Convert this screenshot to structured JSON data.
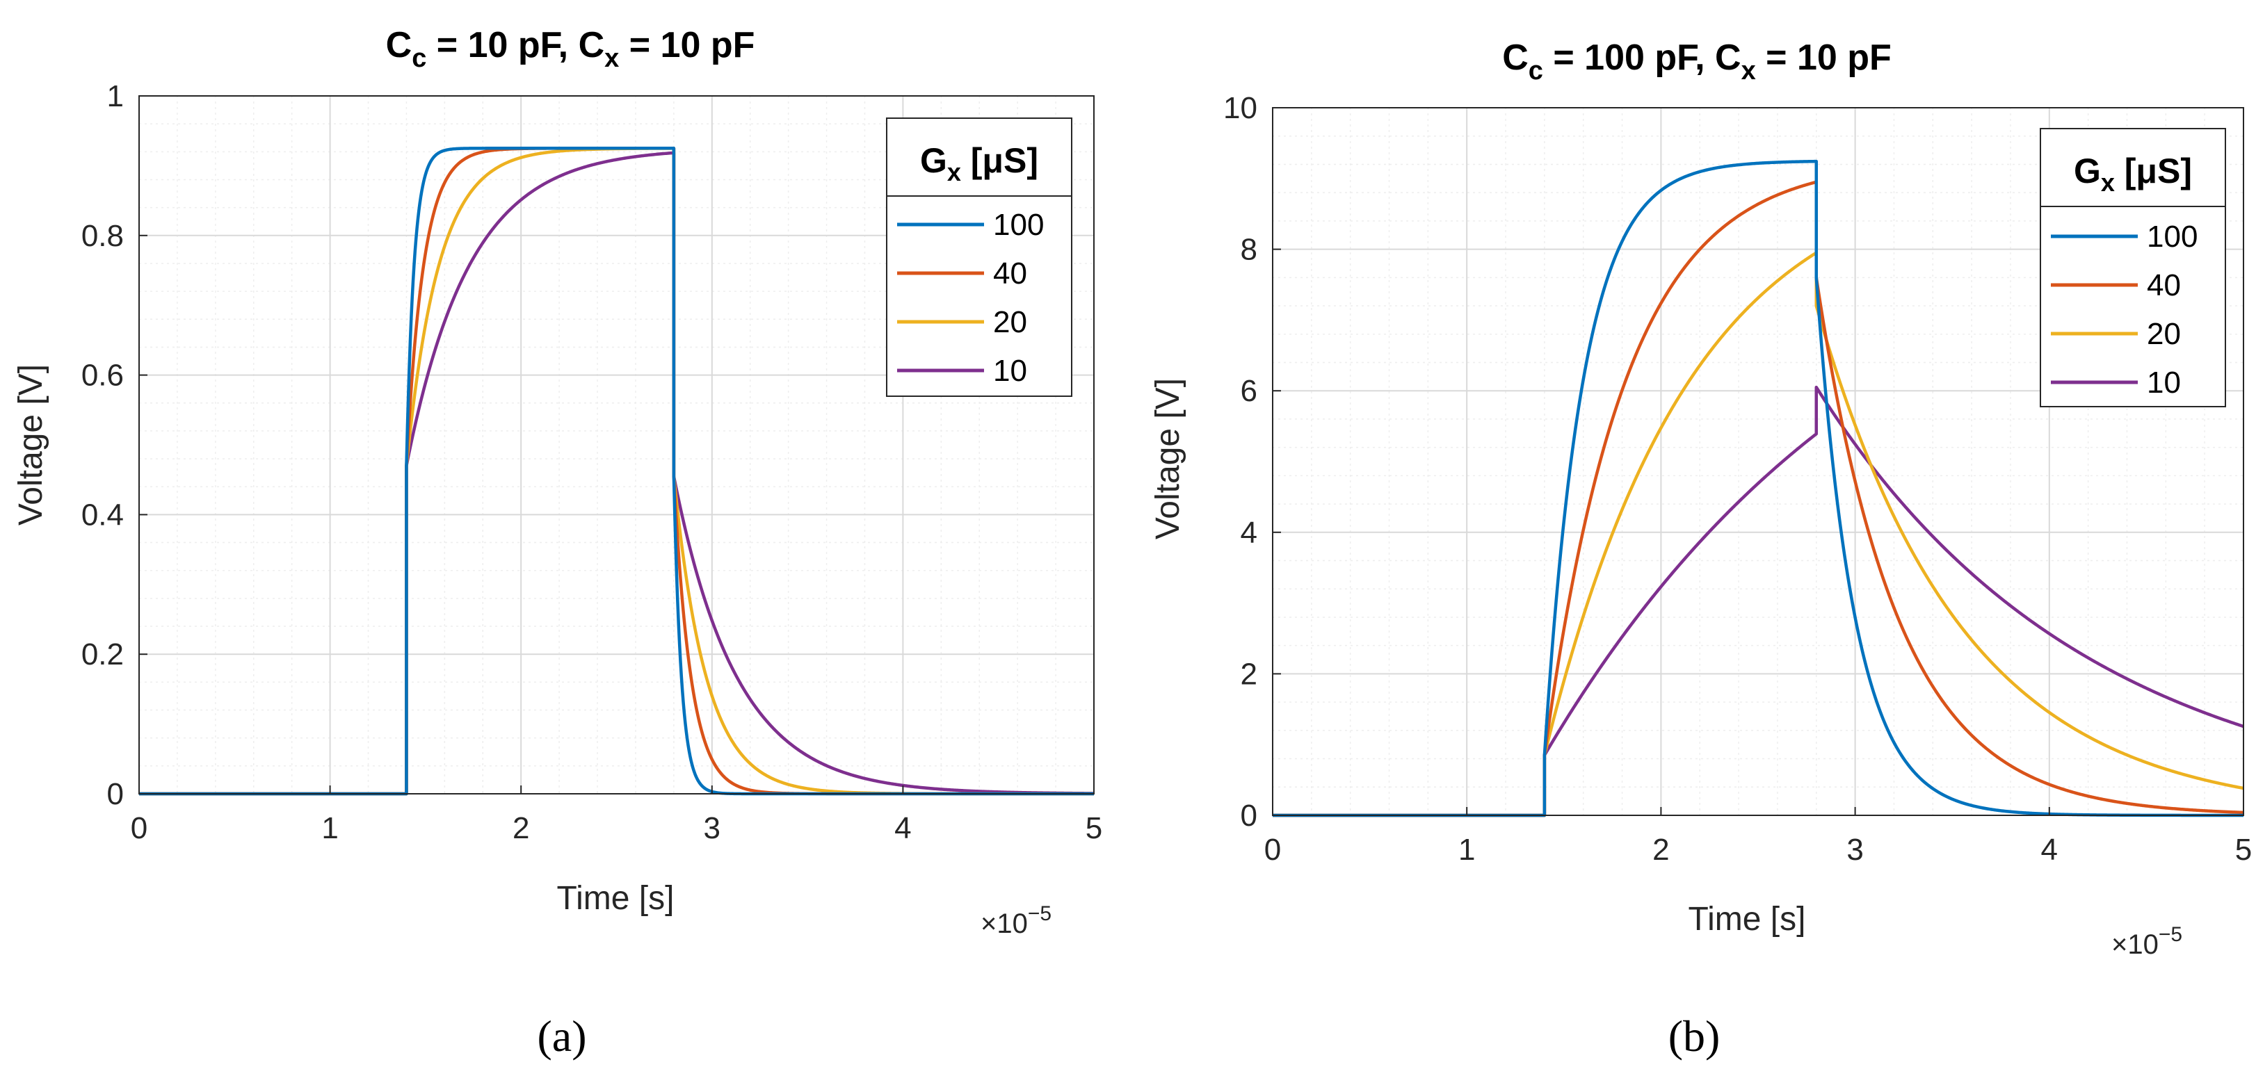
{
  "colors": {
    "series": [
      "#0072BD",
      "#D95319",
      "#EDB120",
      "#7E2F8E"
    ],
    "grid_major": "#d9d9d9",
    "grid_minor": "#eeeeee",
    "axis": "#262626"
  },
  "chart_data": [
    {
      "type": "line",
      "panel": "a",
      "caption": "(a)",
      "title_prefix": "C",
      "title_sub1": "c",
      "title_mid": " = 10 pF, C",
      "title_sub2": "x",
      "title_suffix": " = 10 pF",
      "xlabel": "Time [s]",
      "ylabel": "Voltage [V]",
      "xlim": [
        0,
        5
      ],
      "ylim": [
        0,
        1
      ],
      "xticks": [
        "0",
        "1",
        "2",
        "3",
        "4",
        "5"
      ],
      "yticks": [
        "0",
        "0.2",
        "0.4",
        "0.6",
        "0.8",
        "1"
      ],
      "x_exponent_base": "×10",
      "x_exponent_power": "−5",
      "legend_title_main": "G",
      "legend_title_sub": "x",
      "legend_title_rest": " [μS]",
      "legend_position": "top-right",
      "pulse": {
        "t_on": 1.4,
        "t_off": 2.8,
        "v_final": 0.925
      },
      "series": [
        {
          "name": "100",
          "v_jump_on": 0.47,
          "tau_rise": 0.04,
          "v_jump_off": 0.455,
          "tau_fall": 0.04
        },
        {
          "name": "40",
          "v_jump_on": 0.47,
          "tau_rise": 0.09,
          "v_jump_off": 0.455,
          "tau_fall": 0.09
        },
        {
          "name": "20",
          "v_jump_on": 0.47,
          "tau_rise": 0.17,
          "v_jump_off": 0.455,
          "tau_fall": 0.17
        },
        {
          "name": "10",
          "v_jump_on": 0.47,
          "tau_rise": 0.33,
          "v_jump_off": 0.455,
          "tau_fall": 0.33
        }
      ]
    },
    {
      "type": "line",
      "panel": "b",
      "caption": "(b)",
      "title_prefix": "C",
      "title_sub1": "c",
      "title_mid": " = 100 pF, C",
      "title_sub2": "x",
      "title_suffix": " = 10 pF",
      "xlabel": "Time [s]",
      "ylabel": "Voltage [V]",
      "xlim": [
        0,
        5
      ],
      "ylim": [
        0,
        10
      ],
      "xticks": [
        "0",
        "1",
        "2",
        "3",
        "4",
        "5"
      ],
      "yticks": [
        "0",
        "2",
        "4",
        "6",
        "8",
        "10"
      ],
      "x_exponent_base": "×10",
      "x_exponent_power": "−5",
      "legend_title_main": "G",
      "legend_title_sub": "x",
      "legend_title_rest": " [μS]",
      "legend_position": "top-right",
      "pulse": {
        "t_on": 1.4,
        "t_off": 2.8,
        "v_final": 9.25
      },
      "series": [
        {
          "name": "100",
          "v_jump_on": 0.85,
          "tau_rise": 0.2,
          "v_jump_off": 7.6,
          "tau_fall": 0.2
        },
        {
          "name": "40",
          "v_jump_on": 0.85,
          "tau_rise": 0.42,
          "v_jump_off": 7.6,
          "tau_fall": 0.42
        },
        {
          "name": "20",
          "v_jump_on": 0.85,
          "tau_rise": 0.75,
          "v_jump_off": 7.2,
          "tau_fall": 0.75
        },
        {
          "name": "10",
          "v_jump_on": 0.85,
          "tau_rise": 1.8,
          "v_jump_off": 6.05,
          "tau_fall": 1.4
        }
      ]
    }
  ]
}
